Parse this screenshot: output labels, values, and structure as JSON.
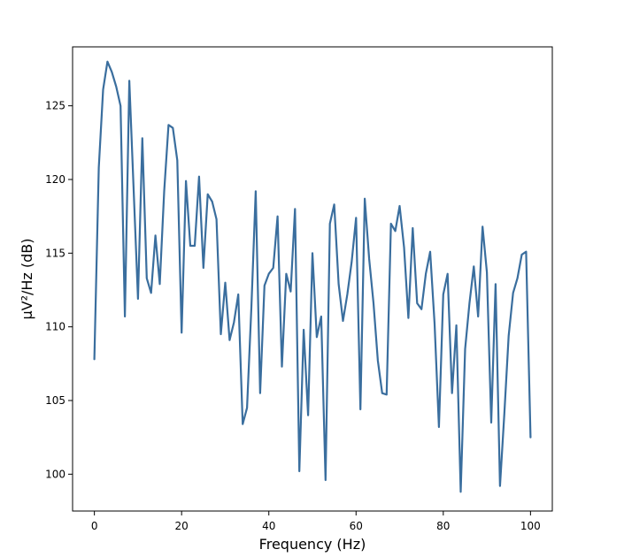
{
  "chart_data": {
    "type": "line",
    "title": "",
    "xlabel": "Frequency (Hz)",
    "ylabel": "µV²/Hz (dB)",
    "xlim": [
      -5,
      105
    ],
    "ylim": [
      97.5,
      129
    ],
    "xticks": [
      0,
      20,
      40,
      60,
      80,
      100
    ],
    "yticks": [
      100,
      105,
      110,
      115,
      120,
      125
    ],
    "grid": false,
    "line_color": "#3a6e9e",
    "series": [
      {
        "x": [
          0,
          1,
          2,
          3,
          4,
          5,
          6,
          7,
          8,
          9,
          10,
          11,
          12,
          13,
          14,
          15,
          16,
          17,
          18,
          19,
          20,
          21,
          22,
          23,
          24,
          25,
          26,
          27,
          28,
          29,
          30,
          31,
          32,
          33,
          34,
          35,
          36,
          37,
          38,
          39,
          40,
          41,
          42,
          43,
          44,
          45,
          46,
          47,
          48,
          49,
          50,
          51,
          52,
          53,
          54,
          55,
          56,
          57,
          58,
          59,
          60,
          61,
          62,
          63,
          64,
          65,
          66,
          67,
          68,
          69,
          70,
          71,
          72,
          73,
          74,
          75,
          76,
          77,
          78,
          79,
          80,
          81,
          82,
          83,
          84,
          85,
          86,
          87,
          88,
          89,
          90,
          91,
          92,
          93,
          94,
          95,
          96,
          97,
          98,
          99,
          100
        ],
        "values": [
          107.8,
          120.8,
          126.1,
          128.0,
          127.3,
          126.3,
          125.0,
          110.7,
          126.7,
          119.3,
          111.9,
          122.8,
          113.3,
          112.3,
          116.2,
          112.9,
          119.2,
          123.7,
          123.5,
          121.3,
          109.6,
          119.9,
          115.5,
          115.5,
          120.2,
          114.0,
          119.0,
          118.5,
          117.3,
          109.5,
          113.0,
          109.1,
          110.3,
          112.2,
          103.4,
          104.5,
          111.3,
          119.2,
          105.5,
          112.8,
          113.6,
          114.0,
          117.5,
          107.3,
          113.6,
          112.4,
          118.0,
          100.2,
          109.8,
          104.0,
          115.0,
          109.3,
          110.7,
          99.6,
          117.0,
          118.3,
          112.9,
          110.4,
          112.2,
          114.4,
          117.4,
          104.4,
          118.7,
          114.6,
          111.6,
          107.7,
          105.5,
          105.4,
          117.0,
          116.5,
          118.2,
          115.4,
          110.6,
          116.7,
          111.6,
          111.2,
          113.6,
          115.1,
          110.2,
          103.2,
          112.2,
          113.6,
          105.5,
          110.1,
          98.8,
          108.5,
          111.6,
          114.1,
          110.7,
          116.8,
          113.7,
          103.5,
          112.9,
          99.2,
          104.1,
          109.4,
          112.3,
          113.3,
          114.9,
          115.1,
          102.5
        ]
      }
    ]
  }
}
